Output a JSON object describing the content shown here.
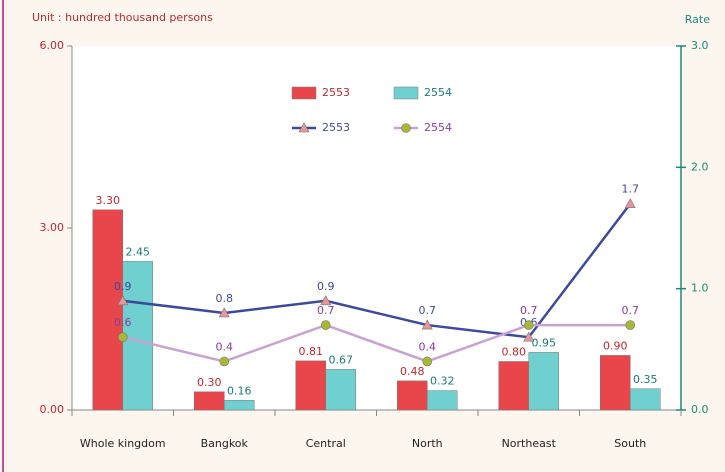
{
  "chart_data": {
    "type": "bar",
    "y_label": "Unit : hundred thousand persons",
    "y2_label": "Rate",
    "categories": [
      "Whole kingdom",
      "Bangkok",
      "Central",
      "North",
      "Northeast",
      "South"
    ],
    "ylim": [
      0,
      6
    ],
    "yticks": [
      {
        "value": 0,
        "label": "0.00"
      },
      {
        "value": 3,
        "label": "3.00"
      },
      {
        "value": 6,
        "label": "6.00"
      }
    ],
    "y2lim": [
      0,
      3
    ],
    "y2ticks": [
      {
        "value": 0,
        "label": "0.0"
      },
      {
        "value": 1,
        "label": "1.0"
      },
      {
        "value": 2,
        "label": "2.0"
      },
      {
        "value": 3,
        "label": "3.0"
      }
    ],
    "series": [
      {
        "name": "2553",
        "type": "bar",
        "color": "#e8464b",
        "values": [
          3.3,
          0.3,
          0.81,
          0.48,
          0.8,
          0.9
        ],
        "value_labels": [
          "3.30",
          "0.30",
          "0.81",
          "0.48",
          "0.80",
          "0.90"
        ]
      },
      {
        "name": "2554",
        "type": "bar",
        "color": "#6fd0cf",
        "values": [
          2.45,
          0.16,
          0.67,
          0.32,
          0.95,
          0.35
        ]
      },
      {
        "name": "2553",
        "type": "line",
        "axis": "y2",
        "color": "#3c4a9c",
        "marker_color": "#e9959a",
        "values": [
          0.9,
          0.8,
          0.9,
          0.7,
          0.6,
          1.7
        ]
      },
      {
        "name": "2554",
        "type": "line",
        "axis": "y2",
        "color": "#c9a2d4",
        "marker_color": "#a9b832",
        "values": [
          0.6,
          0.4,
          0.7,
          0.4,
          0.7,
          0.7
        ]
      }
    ]
  }
}
